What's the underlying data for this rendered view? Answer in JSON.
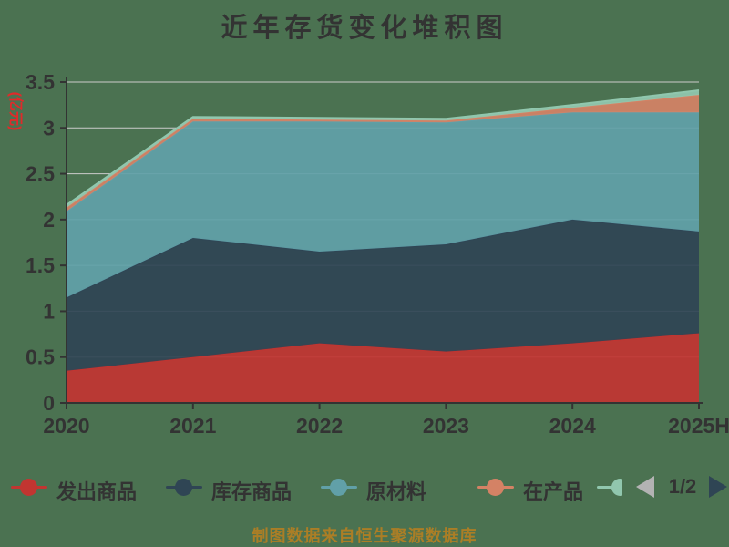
{
  "title": "近年存货变化堆积图",
  "footer": "制图数据来自恒生聚源数据库",
  "y_axis": {
    "unit": "(亿元)",
    "ticks": [
      "0",
      "0.5",
      "1",
      "1.5",
      "2",
      "2.5",
      "3",
      "3.5"
    ],
    "min": 0,
    "max": 3.5,
    "step": 0.5
  },
  "x_axis": {
    "categories": [
      "2020",
      "2021",
      "2022",
      "2023",
      "2024",
      "2025H"
    ]
  },
  "legend": {
    "items": [
      {
        "label": "发出商品",
        "color": "#c23531",
        "clipped": false
      },
      {
        "label": "库存商品",
        "color": "#2f4554",
        "clipped": false
      },
      {
        "label": "原材料",
        "color": "#61a0a8",
        "clipped": false
      },
      {
        "label": "在产品",
        "color": "#d48265",
        "clipped": false
      },
      {
        "label": "",
        "color": "#91c7ae",
        "clipped": true
      }
    ],
    "pager": {
      "current": "1/2"
    }
  },
  "chart_data": {
    "type": "area",
    "stacked": true,
    "title": "近年存货变化堆积图",
    "ylabel": "(亿元)",
    "ylim": [
      0,
      3.5
    ],
    "grid": true,
    "legend_position": "bottom",
    "x": [
      "2020",
      "2021",
      "2022",
      "2023",
      "2024",
      "2025H"
    ],
    "series": [
      {
        "name": "发出商品",
        "color": "#c23531",
        "values": [
          0.35,
          0.5,
          0.65,
          0.56,
          0.65,
          0.76
        ]
      },
      {
        "name": "库存商品",
        "color": "#2f4554",
        "values": [
          0.8,
          1.3,
          1.0,
          1.17,
          1.35,
          1.11
        ]
      },
      {
        "name": "原材料",
        "color": "#61a0a8",
        "values": [
          0.94,
          1.27,
          1.42,
          1.33,
          1.17,
          1.3
        ]
      },
      {
        "name": "在产品",
        "color": "#d48265",
        "values": [
          0.04,
          0.03,
          0.02,
          0.02,
          0.05,
          0.19
        ]
      },
      {
        "name": "",
        "color": "#91c7ae",
        "values": [
          0.03,
          0.02,
          0.02,
          0.02,
          0.03,
          0.05
        ]
      }
    ],
    "stacked_totals": [
      2.16,
      3.12,
      3.11,
      3.1,
      3.25,
      3.41
    ]
  },
  "colors": {
    "background": "#4b7251",
    "text": "#333333",
    "grid": "#cccccc",
    "axis": "#333333",
    "unit_label": "#e02a2a",
    "footer_text": "#ab7e26",
    "pager_prev": "#b3b3b3",
    "pager_next": "#2f4554"
  }
}
